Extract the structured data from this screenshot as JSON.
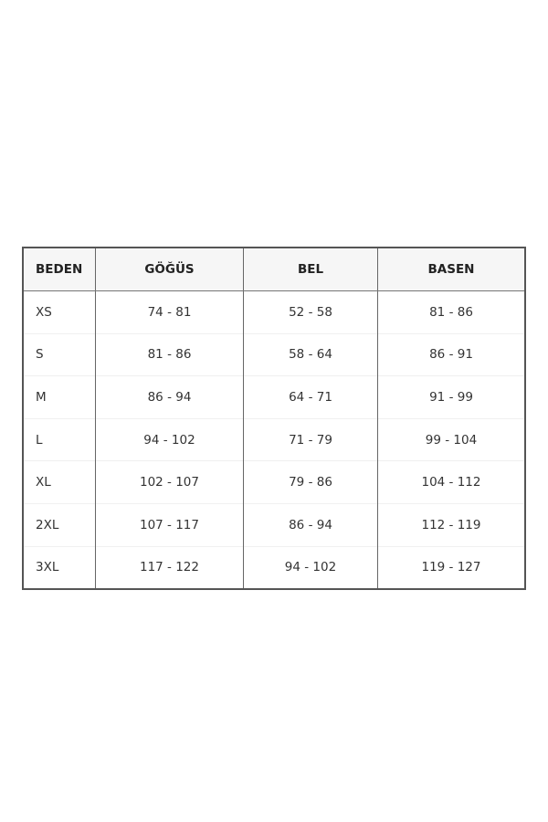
{
  "table": {
    "headers": [
      "BEDEN",
      "GÖĞÜS",
      "BEL",
      "BASEN"
    ],
    "rows": [
      [
        "XS",
        "74 - 81",
        "52 - 58",
        "81 - 86"
      ],
      [
        "S",
        "81 - 86",
        "58 - 64",
        "86 - 91"
      ],
      [
        "M",
        "86 - 94",
        "64 - 71",
        "91 - 99"
      ],
      [
        "L",
        "94 - 102",
        "71 - 79",
        "99 - 104"
      ],
      [
        "XL",
        "102 - 107",
        "79 - 86",
        "104 - 112"
      ],
      [
        "2XL",
        "107 - 117",
        "86 - 94",
        "112 - 119"
      ],
      [
        "3XL",
        "117 - 122",
        "94 - 102",
        "119 - 127"
      ]
    ]
  }
}
